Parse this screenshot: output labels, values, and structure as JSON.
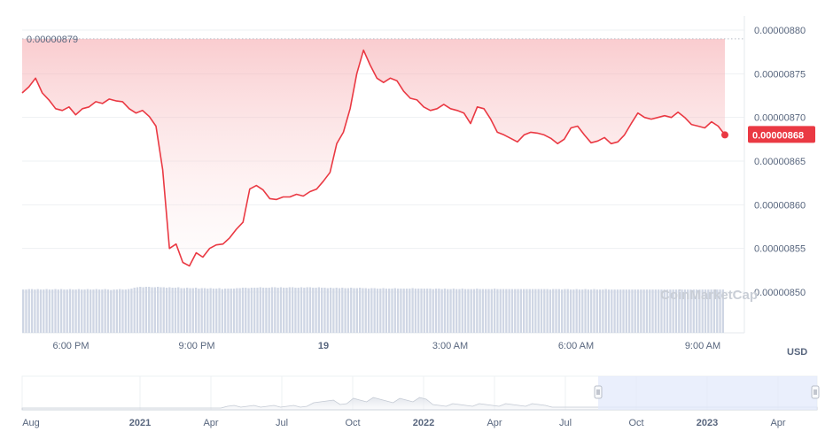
{
  "chart_data": {
    "type": "area",
    "unit": "USD",
    "ylim": [
      8.5e-06,
      8.8e-06
    ],
    "y_ticks": [
      "0.00000880",
      "0.00000875",
      "0.00000870",
      "0.00000865",
      "0.00000860",
      "0.00000855",
      "0.00000850"
    ],
    "x_ticks": [
      {
        "label": "6:00 PM",
        "bold": false
      },
      {
        "label": "9:00 PM",
        "bold": false
      },
      {
        "label": "19",
        "bold": true
      },
      {
        "label": "3:00 AM",
        "bold": false
      },
      {
        "label": "6:00 AM",
        "bold": false
      },
      {
        "label": "9:00 AM",
        "bold": false
      }
    ],
    "max_label": "0.00000879",
    "last_value_label": "0.00000868",
    "watermark": "CoinMarketCap",
    "series": [
      {
        "values": [
          8.728e-06,
          8.735e-06,
          8.745e-06,
          8.728e-06,
          8.72e-06,
          8.71e-06,
          8.708e-06,
          8.712e-06,
          8.703e-06,
          8.71e-06,
          8.712e-06,
          8.718e-06,
          8.716e-06,
          8.721e-06,
          8.719e-06,
          8.718e-06,
          8.71e-06,
          8.705e-06,
          8.708e-06,
          8.701e-06,
          8.69e-06,
          8.64e-06,
          8.55e-06,
          8.555e-06,
          8.534e-06,
          8.53e-06,
          8.545e-06,
          8.54e-06,
          8.55e-06,
          8.554e-06,
          8.555e-06,
          8.562e-06,
          8.572e-06,
          8.58e-06,
          8.618e-06,
          8.622e-06,
          8.617e-06,
          8.607e-06,
          8.606e-06,
          8.609e-06,
          8.609e-06,
          8.612e-06,
          8.61e-06,
          8.615e-06,
          8.618e-06,
          8.627e-06,
          8.637e-06,
          8.67e-06,
          8.683e-06,
          8.71e-06,
          8.75e-06,
          8.777e-06,
          8.76e-06,
          8.745e-06,
          8.74e-06,
          8.745e-06,
          8.742e-06,
          8.73e-06,
          8.722e-06,
          8.72e-06,
          8.712e-06,
          8.708e-06,
          8.71e-06,
          8.715e-06,
          8.71e-06,
          8.708e-06,
          8.705e-06,
          8.693e-06,
          8.712e-06,
          8.71e-06,
          8.698e-06,
          8.683e-06,
          8.68e-06,
          8.676e-06,
          8.672e-06,
          8.68e-06,
          8.683e-06,
          8.682e-06,
          8.68e-06,
          8.676e-06,
          8.67e-06,
          8.675e-06,
          8.688e-06,
          8.69e-06,
          8.68e-06,
          8.671e-06,
          8.673e-06,
          8.677e-06,
          8.67e-06,
          8.672e-06,
          8.68e-06,
          8.693e-06,
          8.705e-06,
          8.7e-06,
          8.698e-06,
          8.7e-06,
          8.702e-06,
          8.7e-06,
          8.706e-06,
          8.7e-06,
          8.692e-06,
          8.69e-06,
          8.688e-06,
          8.695e-06,
          8.69e-06,
          8.68e-06
        ]
      }
    ],
    "volume": [
      0.94,
      0.94,
      0.95,
      0.95,
      0.94,
      0.95,
      0.94,
      0.94,
      0.95,
      0.94,
      0.94,
      0.95,
      0.94,
      0.95,
      0.94,
      0.94,
      0.95,
      0.94,
      0.94,
      0.95,
      0.94,
      0.94,
      0.95,
      0.94,
      0.94,
      0.95,
      0.94,
      0.94,
      0.95,
      0.94,
      0.93,
      0.94,
      0.94,
      0.95,
      0.94,
      0.94,
      0.95,
      0.96,
      0.98,
      0.99,
      1.0,
      0.99,
      1.0,
      1.0,
      0.99,
      0.99,
      1.0,
      0.99,
      0.99,
      0.98,
      0.99,
      0.98,
      0.98,
      0.99,
      0.97,
      0.97,
      0.98,
      0.97,
      0.97,
      0.98,
      0.96,
      0.97,
      0.97,
      0.96,
      0.97,
      0.96,
      0.96,
      0.97,
      0.95,
      0.96,
      0.96,
      0.96,
      0.96,
      0.97,
      0.97,
      0.98,
      0.98,
      0.97,
      0.98,
      0.98,
      0.98,
      0.99,
      0.98,
      0.98,
      0.98,
      0.99,
      0.99,
      0.98,
      0.99,
      0.98,
      0.98,
      0.99,
      0.99,
      0.98,
      0.98,
      0.99,
      0.98,
      0.99,
      0.99,
      0.98,
      0.98,
      0.99,
      0.98,
      0.98,
      0.97,
      0.98,
      0.97,
      0.98,
      0.97,
      0.98,
      0.97,
      0.97,
      0.98,
      0.97,
      0.97,
      0.98,
      0.97,
      0.97,
      0.96,
      0.97,
      0.97,
      0.96,
      0.96,
      0.97,
      0.96,
      0.96,
      0.96,
      0.97,
      0.96,
      0.96,
      0.96,
      0.96,
      0.96,
      0.97,
      0.96,
      0.96,
      0.96,
      0.96,
      0.96,
      0.96,
      0.95,
      0.96,
      0.96,
      0.95,
      0.96,
      0.95,
      0.95,
      0.96,
      0.95,
      0.95,
      0.96,
      0.95,
      0.95,
      0.95,
      0.95,
      0.96,
      0.95,
      0.95,
      0.95,
      0.95,
      0.95,
      0.96,
      0.95,
      0.95,
      0.95,
      0.95,
      0.95,
      0.95,
      0.95,
      0.95,
      0.95,
      0.95,
      0.95,
      0.95,
      0.95,
      0.95,
      0.95,
      0.95,
      0.95,
      0.95,
      0.94,
      0.95,
      0.95,
      0.95,
      0.94,
      0.95,
      0.95,
      0.94,
      0.94,
      0.95,
      0.94,
      0.94,
      0.95,
      0.94,
      0.94,
      0.95,
      0.94,
      0.94,
      0.94,
      0.95,
      0.94,
      0.94,
      0.94,
      0.94,
      0.94,
      0.94,
      0.94,
      0.94,
      0.94,
      0.94,
      0.94,
      0.94,
      0.94,
      0.94,
      0.94,
      0.94,
      0.94,
      0.94,
      0.94,
      0.94,
      0.94,
      0.94,
      0.94,
      0.94,
      0.94,
      0.94,
      0.94,
      0.94,
      0.94,
      0.94,
      0.94,
      0.94,
      0.94,
      0.94,
      0.94,
      0.94,
      0.94,
      0.94,
      0.94,
      0.94
    ],
    "navigator": {
      "ticks": [
        {
          "label": "Aug",
          "bold": false
        },
        {
          "label": "2021",
          "bold": true
        },
        {
          "label": "Apr",
          "bold": false
        },
        {
          "label": "Jul",
          "bold": false
        },
        {
          "label": "Oct",
          "bold": false
        },
        {
          "label": "2022",
          "bold": true
        },
        {
          "label": "Apr",
          "bold": false
        },
        {
          "label": "Jul",
          "bold": false
        },
        {
          "label": "Oct",
          "bold": false
        },
        {
          "label": "2023",
          "bold": true
        },
        {
          "label": "Apr",
          "bold": false
        }
      ]
    },
    "colors": {
      "line": "#ea3943",
      "area_top": "#f5a3a8",
      "volume": "#cfd6e4",
      "navigator_line": "#c4cad4",
      "navigator_selection": "#e3e9fb",
      "label_bg": "#ea3943"
    }
  }
}
